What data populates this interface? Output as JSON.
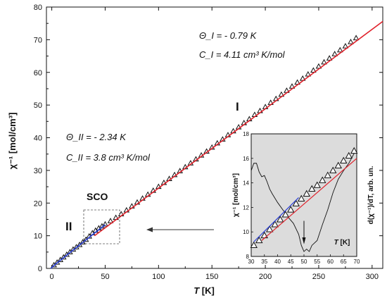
{
  "chart_data": [
    {
      "type": "scatter",
      "xlabel_italic": "T",
      "xlabel_unit": "[K]",
      "ylabel": "χ⁻¹ [mol/cm³]",
      "xlim": [
        -5,
        310
      ],
      "ylim": [
        0,
        80
      ],
      "x_ticks": [
        "0",
        "50",
        "100",
        "150",
        "200",
        "250",
        "300"
      ],
      "y_ticks": [
        "0",
        "10",
        "20",
        "30",
        "40",
        "50",
        "60",
        "70",
        "80"
      ],
      "series": [
        {
          "marker": "open-triangle",
          "color": "#111111",
          "x": [
            2,
            5,
            8,
            11,
            14,
            17,
            20,
            23,
            26,
            29,
            32,
            35,
            38,
            41,
            44,
            47,
            50,
            55,
            60,
            65,
            70,
            75,
            80,
            85,
            90,
            95,
            100,
            105,
            110,
            115,
            120,
            125,
            130,
            135,
            140,
            145,
            150,
            155,
            160,
            165,
            170,
            175,
            180,
            185,
            190,
            195,
            200,
            205,
            210,
            215,
            220,
            225,
            230,
            235,
            240,
            245,
            250,
            255,
            260,
            265,
            270,
            275,
            280,
            285
          ],
          "y": [
            1.0,
            1.8,
            2.6,
            3.4,
            4.2,
            5.0,
            5.8,
            6.5,
            7.2,
            8.0,
            8.8,
            9.8,
            10.8,
            11.6,
            12.3,
            12.9,
            13.5,
            14.5,
            15.5,
            16.6,
            17.8,
            19.0,
            20.2,
            21.4,
            22.6,
            23.8,
            25.0,
            26.2,
            27.4,
            28.6,
            29.8,
            31.0,
            32.2,
            33.4,
            34.6,
            35.8,
            37.0,
            38.3,
            39.5,
            40.8,
            42.0,
            43.2,
            44.5,
            45.7,
            47.0,
            48.2,
            49.4,
            50.7,
            51.9,
            53.2,
            54.4,
            55.7,
            56.9,
            58.1,
            59.4,
            60.6,
            61.8,
            63.1,
            64.3,
            65.6,
            66.8,
            68.0,
            69.3,
            70.5
          ]
        },
        {
          "marker": "blue-line",
          "color": "#2a3fd6",
          "x": [
            -1,
            5,
            10,
            15,
            20,
            25,
            30,
            35,
            40,
            45,
            50
          ],
          "y": [
            0.0,
            1.7,
            3.0,
            4.3,
            5.6,
            6.9,
            8.2,
            9.5,
            10.8,
            12.1,
            13.4
          ]
        },
        {
          "marker": "red-line",
          "color": "#e0202a",
          "x": [
            40,
            310
          ],
          "y": [
            10.0,
            75.6
          ]
        }
      ],
      "annotations": {
        "theta_I": "Θ_I = - 0.79 K",
        "c_I": "C_I = 4.11 cm³ K/mol",
        "theta_II": "Θ_II = - 2.34 K",
        "c_II": "C_II = 3.8 cm³ K/mol",
        "region_I": "I",
        "region_II": "II",
        "sco": "SCO"
      }
    },
    {
      "type": "line",
      "inset": true,
      "xlabel_italic": "T",
      "xlabel_unit": "[K]",
      "ylabel": "χ⁻¹ [mol/cm³]",
      "y2label": "d(χ⁻¹)/dT, arb. un.",
      "xlim": [
        30,
        70
      ],
      "ylim": [
        8,
        18
      ],
      "x_ticks": [
        "30",
        "35",
        "40",
        "45",
        "50",
        "55",
        "60",
        "65",
        "70"
      ],
      "y_ticks": [
        "8",
        "10",
        "12",
        "14",
        "16",
        "18"
      ],
      "series": [
        {
          "marker": "open-triangle",
          "color": "#111111",
          "x": [
            31,
            33,
            35,
            37,
            39,
            41,
            43,
            45,
            47,
            49,
            51,
            53,
            55,
            57,
            59,
            61,
            63,
            65,
            67,
            69
          ],
          "y": [
            8.9,
            9.3,
            9.7,
            10.2,
            10.6,
            11.0,
            11.4,
            11.8,
            12.3,
            12.7,
            13.1,
            13.5,
            13.8,
            14.2,
            14.6,
            15.0,
            15.4,
            15.8,
            16.2,
            16.6
          ]
        },
        {
          "marker": "blue-line",
          "color": "#2a3fd6",
          "x": [
            31,
            48
          ],
          "y": [
            9.2,
            12.8
          ]
        },
        {
          "marker": "red-line",
          "color": "#e0202a",
          "x": [
            34,
            70
          ],
          "y": [
            9.3,
            16.0
          ]
        },
        {
          "marker": "derivative",
          "color": "#111111",
          "x": [
            30,
            31,
            32,
            33,
            34,
            35,
            36,
            37,
            38,
            40,
            42,
            44,
            46,
            48,
            49,
            50,
            51,
            52,
            53,
            55,
            57,
            59,
            61,
            63,
            65,
            67,
            69,
            70
          ],
          "y": [
            15.0,
            15.6,
            15.6,
            14.9,
            14.5,
            14.6,
            14.1,
            13.5,
            13.1,
            12.4,
            11.8,
            11.2,
            10.7,
            9.8,
            8.9,
            8.4,
            8.6,
            8.4,
            8.9,
            9.3,
            10.6,
            11.8,
            13.2,
            14.3,
            15.0,
            15.6,
            16.4,
            16.6
          ]
        }
      ],
      "arrow_at_x": 50
    }
  ]
}
